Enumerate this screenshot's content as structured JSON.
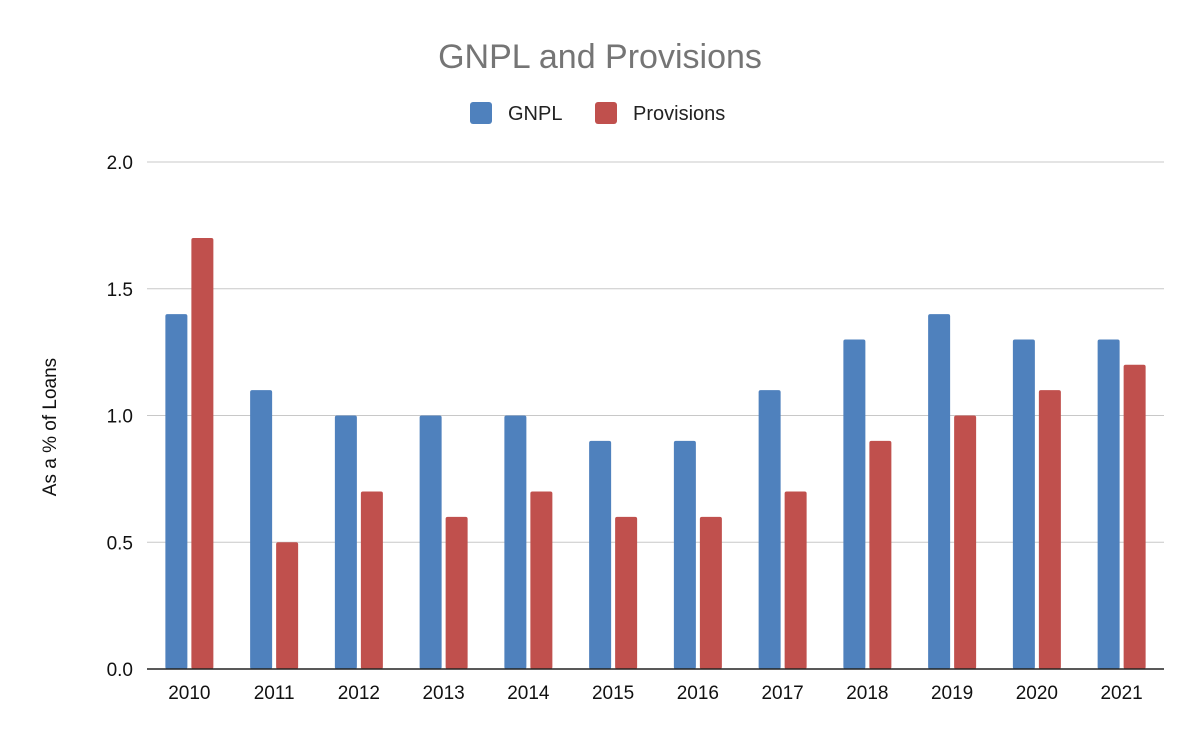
{
  "chart_data": {
    "type": "bar",
    "title": "GNPL and Provisions",
    "ylabel": "As a % of Loans",
    "xlabel": "",
    "ylim": [
      0,
      2.0
    ],
    "yticks": [
      "0.0",
      "0.5",
      "1.0",
      "1.5",
      "2.0"
    ],
    "grid": true,
    "legend_position": "top-center",
    "categories": [
      "2010",
      "2011",
      "2012",
      "2013",
      "2014",
      "2015",
      "2016",
      "2017",
      "2018",
      "2019",
      "2020",
      "2021"
    ],
    "series": [
      {
        "name": "GNPL",
        "color": "#4f81bd",
        "values": [
          1.4,
          1.1,
          1.0,
          1.0,
          1.0,
          0.9,
          0.9,
          1.1,
          1.3,
          1.4,
          1.3,
          1.3
        ]
      },
      {
        "name": "Provisions",
        "color": "#c0504d",
        "values": [
          1.7,
          0.5,
          0.7,
          0.6,
          0.7,
          0.6,
          0.6,
          0.7,
          0.9,
          1.0,
          1.1,
          1.2
        ]
      }
    ]
  }
}
